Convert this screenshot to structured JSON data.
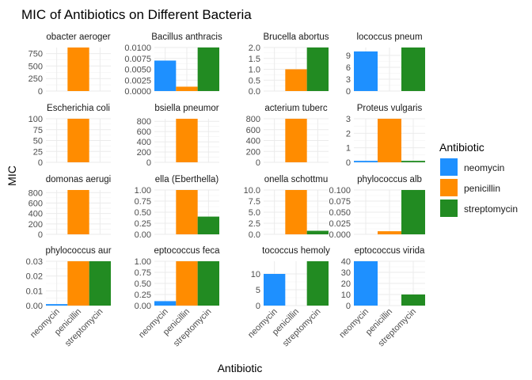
{
  "chart_data": {
    "type": "bar",
    "title": "MIC of Antibiotics on Different Bacteria",
    "xlabel": "Antibiotic",
    "ylabel": "MIC",
    "legend_title": "Antibiotic",
    "legend_position": "right",
    "grid": true,
    "categories": [
      "neomycin",
      "penicillin",
      "streptomycin"
    ],
    "colors": [
      "#1E90FF",
      "#FF8C00",
      "#228B22"
    ],
    "facets": [
      {
        "strip": "obacter aeroger",
        "values": [
          0,
          870,
          0
        ],
        "ticks": [
          0,
          250,
          500,
          750
        ],
        "ymax": 870
      },
      {
        "strip": "Bacillus anthracis",
        "values": [
          0.007,
          0.001,
          0.01
        ],
        "ticks": [
          "0.0000",
          "0.0025",
          "0.0050",
          "0.0075",
          "0.0100"
        ],
        "ymax": 0.01
      },
      {
        "strip": "Brucella abortus",
        "values": [
          0,
          1,
          2
        ],
        "ticks": [
          "0.0",
          "0.5",
          "1.0",
          "1.5",
          "2.0"
        ],
        "ymax": 2
      },
      {
        "strip": "lococcus pneum",
        "values": [
          10,
          0,
          11
        ],
        "ticks": [
          0,
          3,
          6,
          9
        ],
        "ymax": 11
      },
      {
        "strip": "Escherichia coli",
        "values": [
          0,
          100,
          0
        ],
        "ticks": [
          0,
          25,
          50,
          75,
          100
        ],
        "ymax": 100
      },
      {
        "strip": "bsiella pneumor",
        "values": [
          0,
          850,
          0
        ],
        "ticks": [
          0,
          200,
          400,
          600,
          800
        ],
        "ymax": 850
      },
      {
        "strip": "acterium tuberc",
        "values": [
          0,
          800,
          0
        ],
        "ticks": [
          0,
          200,
          400,
          600,
          800
        ],
        "ymax": 800
      },
      {
        "strip": "Proteus vulgaris",
        "values": [
          0.1,
          3,
          0.1
        ],
        "ticks": [
          0,
          1,
          2,
          3
        ],
        "ymax": 3
      },
      {
        "strip": "domonas aerugi",
        "values": [
          0,
          850,
          0
        ],
        "ticks": [
          0,
          200,
          400,
          600,
          800
        ],
        "ymax": 850
      },
      {
        "strip": "ella (Eberthella)",
        "values": [
          0,
          1,
          0.4
        ],
        "ticks": [
          "0.00",
          "0.25",
          "0.50",
          "0.75",
          "1.00"
        ],
        "ymax": 1
      },
      {
        "strip": "onella schottmu",
        "values": [
          0,
          10,
          0.8
        ],
        "ticks": [
          "0.0",
          "2.5",
          "5.0",
          "7.5",
          "10.0"
        ],
        "ymax": 10
      },
      {
        "strip": "phylococcus alb",
        "values": [
          0,
          0.007,
          0.1
        ],
        "ticks": [
          "0.000",
          "0.025",
          "0.050",
          "0.075",
          "0.100"
        ],
        "ymax": 0.1
      },
      {
        "strip": "phylococcus aur",
        "values": [
          0.001,
          0.03,
          0.03
        ],
        "ticks": [
          "0.00",
          "0.01",
          "0.02",
          "0.03"
        ],
        "ymax": 0.03
      },
      {
        "strip": "eptococcus feca",
        "values": [
          0.1,
          1,
          1
        ],
        "ticks": [
          "0.00",
          "0.25",
          "0.50",
          "0.75",
          "1.00"
        ],
        "ymax": 1
      },
      {
        "strip": "tococcus hemoly",
        "values": [
          10,
          0,
          14
        ],
        "ticks": [
          0,
          5,
          10
        ],
        "ymax": 14
      },
      {
        "strip": "eptococcus virida",
        "values": [
          40,
          0,
          10
        ],
        "ticks": [
          0,
          10,
          20,
          30,
          40
        ],
        "ymax": 40
      }
    ]
  }
}
